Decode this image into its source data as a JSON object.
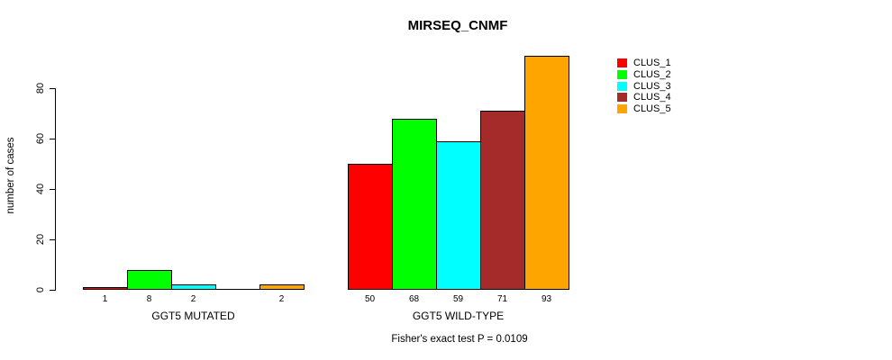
{
  "title": "MIRSEQ_CNMF",
  "subtitle": "Fisher's exact test P = 0.0109",
  "chart_data": {
    "type": "bar",
    "title": "MIRSEQ_CNMF",
    "xlabel": "",
    "ylabel": "number of cases",
    "categories": [
      "GGT5 MUTATED",
      "GGT5 WILD-TYPE"
    ],
    "series": [
      {
        "name": "CLUS_1",
        "color": "#ff0000",
        "values": [
          1,
          50
        ]
      },
      {
        "name": "CLUS_2",
        "color": "#00ff00",
        "values": [
          8,
          68
        ]
      },
      {
        "name": "CLUS_3",
        "color": "#00ffff",
        "values": [
          2,
          59
        ]
      },
      {
        "name": "CLUS_4",
        "color": "#a52a2a",
        "values": [
          0,
          71
        ]
      },
      {
        "name": "CLUS_5",
        "color": "#ffa500",
        "values": [
          2,
          93
        ]
      }
    ],
    "bar_value_labels": {
      "GGT5 MUTATED": [
        "1",
        "8",
        "2",
        "",
        "2"
      ],
      "GGT5 WILD-TYPE": [
        "50",
        "68",
        "59",
        "71",
        "93"
      ]
    },
    "yticks": [
      0,
      20,
      40,
      60,
      80
    ],
    "ylim": [
      0,
      93
    ],
    "grid": false,
    "legend_position": "right",
    "legend_labels": [
      "CLUS_1",
      "CLUS_2",
      "CLUS_3",
      "CLUS_4",
      "CLUS_5"
    ],
    "annotation": "Fisher's exact test P = 0.0109",
    "text_color": "#000000",
    "bar_border_color": "#000000"
  }
}
